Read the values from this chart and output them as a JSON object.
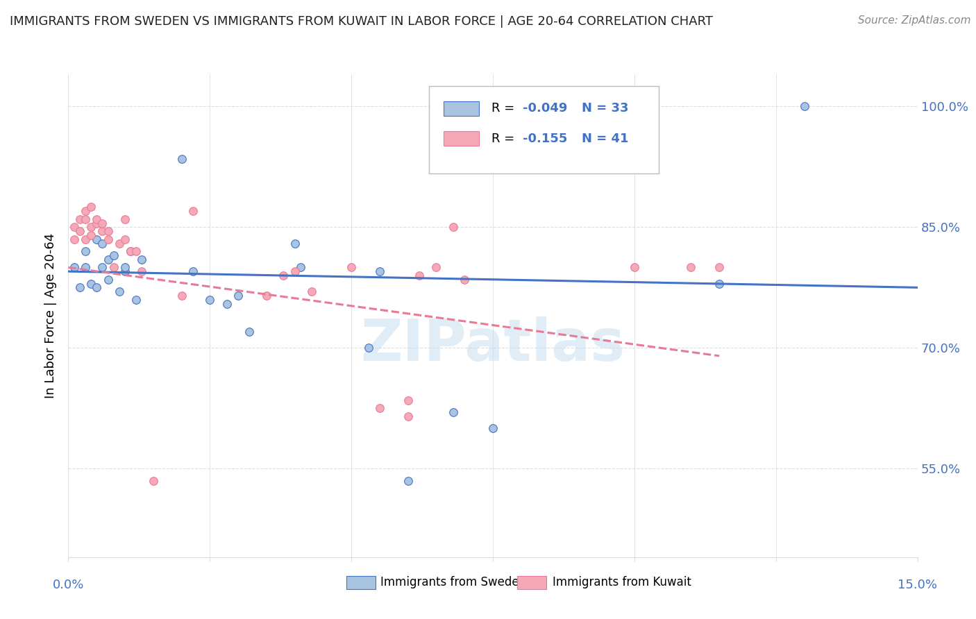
{
  "title": "IMMIGRANTS FROM SWEDEN VS IMMIGRANTS FROM KUWAIT IN LABOR FORCE | AGE 20-64 CORRELATION CHART",
  "source": "Source: ZipAtlas.com",
  "ylabel": "In Labor Force | Age 20-64",
  "ytick_labels": [
    "100.0%",
    "85.0%",
    "70.0%",
    "55.0%"
  ],
  "ytick_values": [
    1.0,
    0.85,
    0.7,
    0.55
  ],
  "xlim": [
    0.0,
    0.15
  ],
  "ylim": [
    0.44,
    1.04
  ],
  "watermark": "ZIPatlas",
  "legend_v1": "-0.049",
  "legend_n1": "N = 33",
  "legend_v2": "-0.155",
  "legend_n2": "N = 41",
  "color_sweden_fill": "#a8c4e0",
  "color_kuwait_fill": "#f4a8b8",
  "color_blue": "#4472c4",
  "color_pink": "#e87a96",
  "sweden_x": [
    0.001,
    0.002,
    0.003,
    0.003,
    0.004,
    0.005,
    0.005,
    0.006,
    0.006,
    0.007,
    0.007,
    0.008,
    0.009,
    0.01,
    0.01,
    0.011,
    0.012,
    0.013,
    0.02,
    0.022,
    0.025,
    0.028,
    0.03,
    0.032,
    0.04,
    0.041,
    0.053,
    0.055,
    0.06,
    0.068,
    0.075,
    0.115,
    0.13
  ],
  "sweden_y": [
    0.8,
    0.775,
    0.8,
    0.82,
    0.78,
    0.835,
    0.775,
    0.8,
    0.83,
    0.785,
    0.81,
    0.815,
    0.77,
    0.795,
    0.8,
    0.82,
    0.76,
    0.81,
    0.935,
    0.795,
    0.76,
    0.755,
    0.765,
    0.72,
    0.83,
    0.8,
    0.7,
    0.795,
    0.535,
    0.62,
    0.6,
    0.78,
    1.0
  ],
  "kuwait_x": [
    0.001,
    0.001,
    0.002,
    0.002,
    0.003,
    0.003,
    0.003,
    0.004,
    0.004,
    0.004,
    0.005,
    0.005,
    0.006,
    0.006,
    0.007,
    0.007,
    0.008,
    0.009,
    0.01,
    0.01,
    0.011,
    0.012,
    0.013,
    0.015,
    0.02,
    0.022,
    0.035,
    0.038,
    0.04,
    0.043,
    0.05,
    0.055,
    0.06,
    0.06,
    0.062,
    0.065,
    0.068,
    0.07,
    0.1,
    0.11,
    0.115
  ],
  "kuwait_y": [
    0.835,
    0.85,
    0.845,
    0.86,
    0.835,
    0.86,
    0.87,
    0.85,
    0.84,
    0.875,
    0.855,
    0.86,
    0.845,
    0.855,
    0.835,
    0.845,
    0.8,
    0.83,
    0.835,
    0.86,
    0.82,
    0.82,
    0.795,
    0.535,
    0.765,
    0.87,
    0.765,
    0.79,
    0.795,
    0.77,
    0.8,
    0.625,
    0.615,
    0.635,
    0.79,
    0.8,
    0.85,
    0.785,
    0.8,
    0.8,
    0.8
  ],
  "trend_sw_x0": 0.0,
  "trend_sw_x1": 0.15,
  "trend_sw_y0": 0.795,
  "trend_sw_y1": 0.775,
  "trend_kw_x0": 0.0,
  "trend_kw_x1": 0.115,
  "trend_kw_y0": 0.8,
  "trend_kw_y1": 0.69,
  "grid_color": "#dddddd",
  "title_fontsize": 13,
  "source_fontsize": 11,
  "tick_fontsize": 13,
  "ylabel_fontsize": 13,
  "legend_fontsize": 13,
  "scatter_size": 70
}
